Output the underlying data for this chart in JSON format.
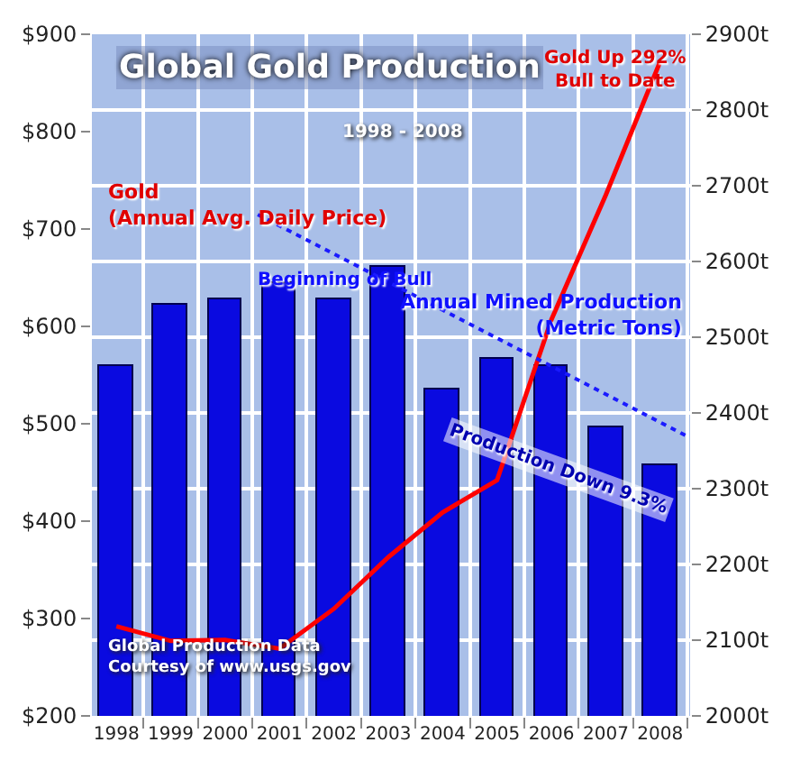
{
  "chart_data": {
    "type": "bar",
    "title": "Global Gold Production",
    "subtitle": "1998 - 2008",
    "x": [
      1998,
      1999,
      2000,
      2001,
      2002,
      2003,
      2004,
      2005,
      2006,
      2007,
      2008
    ],
    "xlim": [
      1997.55,
      2008.55
    ],
    "xticks": [
      1998,
      1999,
      2000,
      2001,
      2002,
      2003,
      2004,
      2005,
      2006,
      2007,
      2008
    ],
    "series": [
      {
        "axis": "y2",
        "color": "#0a0ae0",
        "values": [
          2461,
          2544,
          2551,
          2571,
          2551,
          2592,
          2432,
          2471,
          2461,
          2380,
          2331
        ]
      },
      {
        "type": "line",
        "axis": "y",
        "color": "#ff0000",
        "line_style": "solid",
        "values": [
          292,
          277,
          278,
          269,
          310,
          363,
          409,
          442,
          607,
          735,
          872
        ]
      },
      {
        "type": "line",
        "axis": "y2",
        "color": "#1a1aff",
        "line_style": "dotted",
        "x": [
          2000.6,
          2008.5
        ],
        "values": [
          2662,
          2369
        ]
      }
    ],
    "ylim": [
      200,
      900
    ],
    "yticks": [
      {
        "value": 200,
        "label": "$200"
      },
      {
        "value": 300,
        "label": "$300"
      },
      {
        "value": 400,
        "label": "$400"
      },
      {
        "value": 500,
        "label": "$500"
      },
      {
        "value": 600,
        "label": "$600"
      },
      {
        "value": 700,
        "label": "$700"
      },
      {
        "value": 800,
        "label": "$800"
      },
      {
        "value": 900,
        "label": "$900"
      }
    ],
    "y2lim": [
      2000,
      2900
    ],
    "y2ticks": [
      {
        "value": 2000,
        "label": "2000t"
      },
      {
        "value": 2100,
        "label": "2100t"
      },
      {
        "value": 2200,
        "label": "2200t"
      },
      {
        "value": 2300,
        "label": "2300t"
      },
      {
        "value": 2400,
        "label": "2400t"
      },
      {
        "value": 2500,
        "label": "2500t"
      },
      {
        "value": 2600,
        "label": "2600t"
      },
      {
        "value": 2700,
        "label": "2700t"
      },
      {
        "value": 2800,
        "label": "2800t"
      },
      {
        "value": 2900,
        "label": "2900t"
      }
    ],
    "grid": true,
    "marker": "none",
    "annotations": [
      "Gold\n(Annual Avg. Daily Price)",
      "Beginning of Bull",
      "Annual Mined Production\n(Metric Tons)",
      "Production Down 9.3%",
      "Gold Up 292%\nBull to Date",
      "Global Production Data\nCourtesy of www.usgs.gov"
    ]
  }
}
